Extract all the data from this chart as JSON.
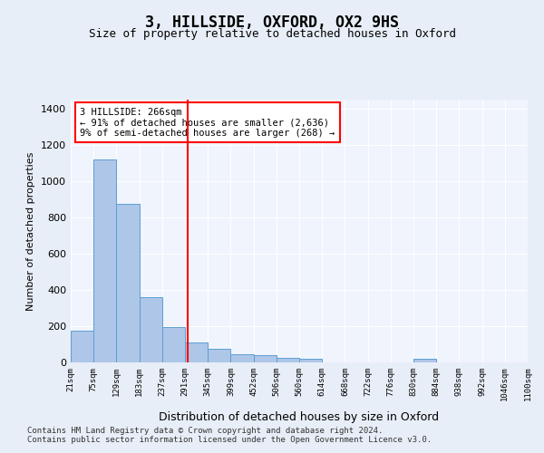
{
  "title": "3, HILLSIDE, OXFORD, OX2 9HS",
  "subtitle": "Size of property relative to detached houses in Oxford",
  "xlabel": "Distribution of detached houses by size in Oxford",
  "ylabel": "Number of detached properties",
  "bin_labels": [
    "21sqm",
    "75sqm",
    "129sqm",
    "183sqm",
    "237sqm",
    "291sqm",
    "345sqm",
    "399sqm",
    "452sqm",
    "506sqm",
    "560sqm",
    "614sqm",
    "668sqm",
    "722sqm",
    "776sqm",
    "830sqm",
    "884sqm",
    "938sqm",
    "992sqm",
    "1046sqm",
    "1100sqm"
  ],
  "bar_values": [
    175,
    1120,
    875,
    360,
    195,
    110,
    75,
    45,
    40,
    25,
    20,
    0,
    0,
    0,
    0,
    20,
    0,
    0,
    0,
    0
  ],
  "bar_color": "#aec6e8",
  "bar_edge_color": "#5a9fd4",
  "vline_x": 4.6,
  "vline_color": "red",
  "annotation_text": "3 HILLSIDE: 266sqm\n← 91% of detached houses are smaller (2,636)\n9% of semi-detached houses are larger (268) →",
  "annotation_box_color": "#ffffff",
  "annotation_box_edge": "red",
  "footer": "Contains HM Land Registry data © Crown copyright and database right 2024.\nContains public sector information licensed under the Open Government Licence v3.0.",
  "ylim": [
    0,
    1450
  ],
  "yticks": [
    0,
    200,
    400,
    600,
    800,
    1000,
    1200,
    1400
  ],
  "bg_color": "#e8eef7",
  "plot_bg": "#f0f4fc"
}
